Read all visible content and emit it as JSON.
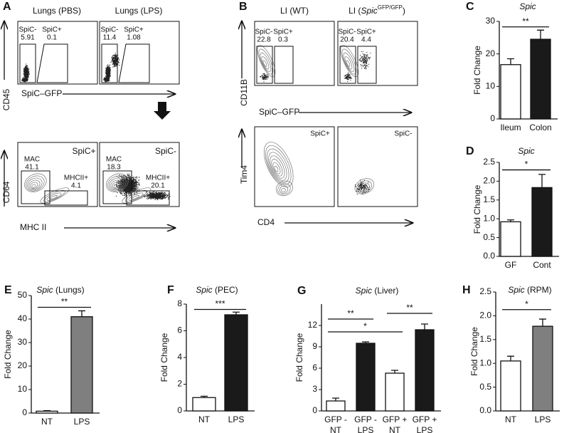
{
  "flow_panels": [
    {
      "panel": "A",
      "columns": [
        "Lungs (PBS)",
        "Lungs (LPS)"
      ],
      "rows": [
        {
          "y_label": "CD45",
          "x_label": "SpiC–GFP",
          "plots": [
            {
              "gates": [
                {
                  "label": "SpiC-",
                  "value": 5.91
                },
                {
                  "label": "SpiC+",
                  "value": 0.1
                }
              ]
            },
            {
              "gates": [
                {
                  "label": "SpiC-",
                  "value": 11.4
                },
                {
                  "label": "SpiC+",
                  "value": 1.08
                }
              ]
            }
          ]
        },
        {
          "y_label": "CD64",
          "x_label": "MHC II",
          "plots": [
            {
              "tag": "SpiC+",
              "gates": [
                {
                  "label": "MAC",
                  "value": 41.1
                },
                {
                  "label": "MHCII+",
                  "value": 4.1
                }
              ]
            },
            {
              "tag": "SpiC-",
              "gates": [
                {
                  "label": "MAC",
                  "value": 18.3
                },
                {
                  "label": "MHCII+",
                  "value": 20.1
                }
              ]
            }
          ]
        }
      ]
    },
    {
      "panel": "B",
      "columns": [
        "LI (WT)",
        {
          "prefix": "LI (",
          "italic": "Spic",
          "sup": "GFP/GFP",
          "suffix": ")"
        }
      ],
      "rows": [
        {
          "y_label": "CD11B",
          "x_label": "SpiC–GFP",
          "plots": [
            {
              "gates": [
                {
                  "label": "SpiC-",
                  "value": 22.8
                },
                {
                  "label": "SpiC+",
                  "value": 0.3
                }
              ]
            },
            {
              "gates": [
                {
                  "label": "SpiC-",
                  "value": 20.4
                },
                {
                  "label": "SpiC+",
                  "value": 4.4
                }
              ]
            }
          ]
        },
        {
          "y_label": "Tim4",
          "x_label": "CD4",
          "plots": [
            {
              "tag": "SpiC+"
            },
            {
              "tag": "SpiC-"
            }
          ]
        }
      ]
    }
  ],
  "chart_data": [
    {
      "type": "bar",
      "panel": "C",
      "title": "Spic",
      "y_label": "Fold Change",
      "categories": [
        "Ileum",
        "Colon"
      ],
      "values": [
        16.7,
        24.5
      ],
      "errors": [
        1.8,
        2.8
      ],
      "colors": [
        "#ffffff",
        "#1a1a1a"
      ],
      "ylim": [
        0,
        30
      ],
      "yticks": [
        0,
        10,
        20,
        30
      ],
      "annotations": [
        "**"
      ]
    },
    {
      "type": "bar",
      "panel": "D",
      "title": "Spic",
      "y_label": "Fold Change",
      "categories": [
        "GF",
        "Cont"
      ],
      "values": [
        0.92,
        1.83
      ],
      "errors": [
        0.05,
        0.35
      ],
      "colors": [
        "#ffffff",
        "#1a1a1a"
      ],
      "ylim": [
        0,
        2.5
      ],
      "yticks": [
        {
          "value": 0,
          "label": "0.0"
        },
        0.5,
        {
          "value": 1,
          "label": "1.0"
        },
        1.5,
        {
          "value": 2,
          "label": "2.0"
        },
        2.5
      ],
      "annotations": [
        "*"
      ]
    },
    {
      "type": "bar",
      "panel": "E",
      "title": "Spic",
      "title_suffix": "(Lungs)",
      "y_label": "Fold Change",
      "categories": [
        "NT",
        "LPS"
      ],
      "values": [
        0.8,
        41
      ],
      "errors": [
        0.2,
        2.5
      ],
      "colors": [
        "#ffffff",
        "#7f7f7f"
      ],
      "ylim": [
        0,
        50
      ],
      "yticks": [
        0,
        10,
        20,
        30,
        40,
        50
      ],
      "annotations": [
        "**"
      ]
    },
    {
      "type": "bar",
      "panel": "F",
      "title": "Spic",
      "title_suffix": "(PEC)",
      "y_label": "Fold Change",
      "categories": [
        "NT",
        "LPS"
      ],
      "values": [
        1.0,
        7.2
      ],
      "errors": [
        0.1,
        0.2
      ],
      "colors": [
        "#ffffff",
        "#1a1a1a"
      ],
      "ylim": [
        0,
        8
      ],
      "yticks": [
        0,
        2,
        4,
        6,
        8
      ],
      "annotations": [
        "***"
      ]
    },
    {
      "type": "bar",
      "panel": "G",
      "title": "Spic",
      "title_suffix": "(Liver)",
      "y_label": "Fold Change",
      "categories": [
        [
          "GFP -",
          "NT"
        ],
        [
          "GFP -",
          "LPS"
        ],
        [
          "GFP +",
          "NT"
        ],
        [
          "GFP +",
          "LPS"
        ]
      ],
      "values": [
        1.4,
        9.5,
        5.3,
        11.4
      ],
      "errors": [
        0.4,
        0.2,
        0.4,
        0.8
      ],
      "colors": [
        "#ffffff",
        "#1a1a1a",
        "#ffffff",
        "#1a1a1a"
      ],
      "ylim": [
        0,
        15
      ],
      "yticks": [
        0,
        3,
        6,
        9,
        12
      ],
      "annotations": [
        "**",
        "*",
        "**"
      ]
    },
    {
      "type": "bar",
      "panel": "H",
      "title": "Spic",
      "title_suffix": "(RPM)",
      "y_label": "Fold Change",
      "categories": [
        "NT",
        "LPS"
      ],
      "values": [
        1.05,
        1.78
      ],
      "errors": [
        0.1,
        0.15
      ],
      "colors": [
        "#ffffff",
        "#7f7f7f"
      ],
      "ylim": [
        0,
        2.5
      ],
      "yticks": [
        {
          "value": 0,
          "label": "0.0"
        },
        0.5,
        {
          "value": 1,
          "label": "1.0"
        },
        1.5,
        {
          "value": 2,
          "label": "2.0"
        },
        2.5
      ],
      "annotations": [
        "*"
      ]
    }
  ]
}
